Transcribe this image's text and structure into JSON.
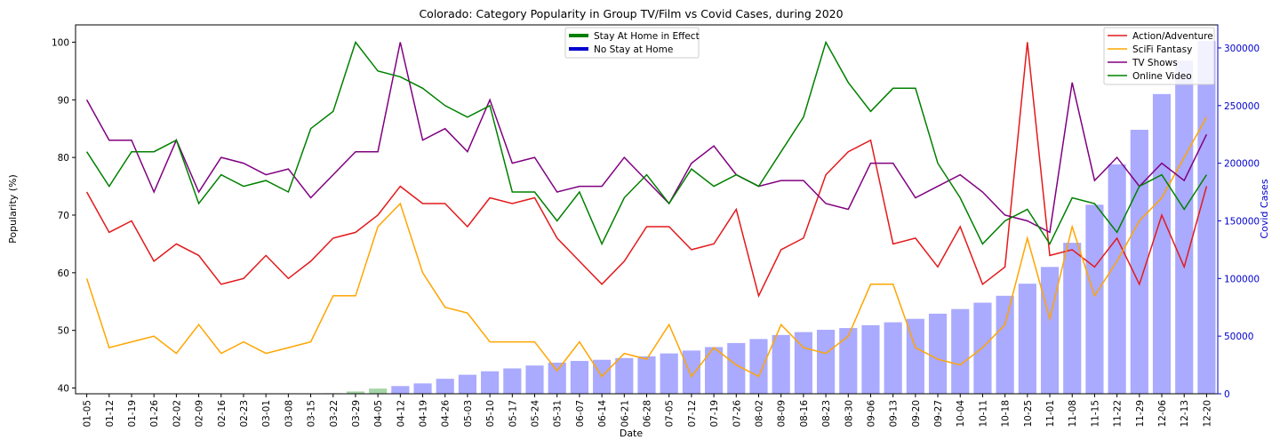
{
  "chart_data": {
    "type": "line",
    "title": "Colorado: Category Popularity in Group TV/Film vs Covid Cases, during 2020",
    "xlabel": "Date",
    "ylabel": "Popularity (%)",
    "y2label": "Covid Cases",
    "ylim": [
      39,
      103
    ],
    "y2lim": [
      0,
      320000
    ],
    "yticks": [
      40,
      50,
      60,
      70,
      80,
      90,
      100
    ],
    "y2ticks": [
      0,
      50000,
      100000,
      150000,
      200000,
      250000,
      300000
    ],
    "grid": false,
    "categories": [
      "01-05",
      "01-12",
      "01-19",
      "01-26",
      "02-02",
      "02-09",
      "02-16",
      "02-23",
      "03-01",
      "03-08",
      "03-15",
      "03-22",
      "03-29",
      "04-05",
      "04-12",
      "04-19",
      "04-26",
      "05-03",
      "05-10",
      "05-17",
      "05-24",
      "05-31",
      "06-07",
      "06-14",
      "06-21",
      "06-28",
      "07-05",
      "07-12",
      "07-19",
      "07-26",
      "08-02",
      "08-09",
      "08-16",
      "08-23",
      "08-30",
      "09-06",
      "09-13",
      "09-20",
      "09-27",
      "10-04",
      "10-11",
      "10-18",
      "10-25",
      "11-01",
      "11-08",
      "11-15",
      "11-22",
      "11-29",
      "12-06",
      "12-13",
      "12-20"
    ],
    "series": [
      {
        "name": "Action/Adventure",
        "color": "#e31a1c",
        "values": [
          74,
          67,
          69,
          62,
          65,
          63,
          58,
          59,
          63,
          59,
          62,
          66,
          67,
          70,
          75,
          72,
          72,
          68,
          73,
          72,
          73,
          66,
          62,
          58,
          62,
          68,
          68,
          64,
          65,
          71,
          56,
          64,
          66,
          77,
          81,
          83,
          65,
          66,
          61,
          68,
          58,
          61,
          100,
          63,
          64,
          61,
          66,
          58,
          70,
          61,
          75
        ]
      },
      {
        "name": "SciFi Fantasy",
        "color": "#ffa500",
        "values": [
          59,
          47,
          48,
          49,
          46,
          51,
          46,
          48,
          46,
          47,
          48,
          56,
          56,
          68,
          72,
          60,
          54,
          53,
          48,
          48,
          48,
          43,
          48,
          42,
          46,
          45,
          51,
          42,
          47,
          44,
          42,
          51,
          47,
          46,
          49,
          58,
          58,
          47,
          45,
          44,
          47,
          51,
          66,
          52,
          68,
          56,
          62,
          69,
          73,
          80,
          87
        ]
      },
      {
        "name": "TV Shows",
        "color": "#800080",
        "values": [
          90,
          83,
          83,
          74,
          83,
          74,
          80,
          79,
          77,
          78,
          73,
          77,
          81,
          81,
          100,
          83,
          85,
          81,
          90,
          79,
          80,
          74,
          75,
          75,
          80,
          76,
          72,
          79,
          82,
          77,
          75,
          76,
          76,
          72,
          71,
          79,
          79,
          73,
          75,
          77,
          74,
          70,
          69,
          67,
          93,
          76,
          80,
          75,
          79,
          76,
          84
        ]
      },
      {
        "name": "Online Video",
        "color": "#008000",
        "values": [
          81,
          75,
          81,
          81,
          83,
          72,
          77,
          75,
          76,
          74,
          85,
          88,
          100,
          95,
          94,
          92,
          89,
          87,
          89,
          74,
          74,
          69,
          74,
          65,
          73,
          77,
          72,
          78,
          75,
          77,
          75,
          81,
          87,
          100,
          93,
          88,
          92,
          92,
          79,
          73,
          65,
          69,
          71,
          65,
          73,
          72,
          67,
          75,
          77,
          71,
          77
        ]
      }
    ],
    "bars": {
      "name": "Covid Cases",
      "color": "#aaaaff",
      "green_color": "#a5d6a7",
      "values": [
        0,
        0,
        0,
        0,
        0,
        0,
        0,
        0,
        0,
        0,
        0,
        500,
        2000,
        4500,
        6700,
        9000,
        13000,
        16500,
        19500,
        22000,
        24500,
        27000,
        28500,
        29500,
        31000,
        32500,
        35000,
        37500,
        40500,
        44000,
        47500,
        51000,
        53500,
        55500,
        57000,
        59500,
        62000,
        65000,
        69500,
        73500,
        79000,
        85000,
        95500,
        110000,
        131000,
        164000,
        199000,
        229000,
        260000,
        289000,
        306000
      ],
      "stay_at_home": [
        false,
        false,
        false,
        false,
        false,
        false,
        false,
        false,
        false,
        false,
        false,
        true,
        true,
        true,
        false,
        false,
        false,
        false,
        false,
        false,
        false,
        false,
        false,
        false,
        false,
        false,
        false,
        false,
        false,
        false,
        false,
        false,
        false,
        false,
        false,
        false,
        false,
        false,
        false,
        false,
        false,
        false,
        false,
        false,
        false,
        false,
        false,
        false,
        false,
        false,
        false
      ]
    },
    "legend_left": {
      "placement": "top-center",
      "items": [
        {
          "label": "Stay At Home in Effect",
          "color": "#008000"
        },
        {
          "label": "No Stay at Home",
          "color": "#0000cd"
        }
      ]
    },
    "legend_right": {
      "placement": "top-right"
    }
  }
}
